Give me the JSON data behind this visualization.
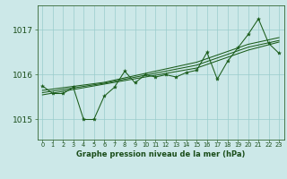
{
  "title": "Graphe pression niveau de la mer (hPa)",
  "background_color": "#cce8e8",
  "grid_color": "#99cccc",
  "line_color": "#1a5c1a",
  "marker_color": "#1a5c1a",
  "xlim": [
    -0.5,
    23.5
  ],
  "ylim": [
    1014.55,
    1017.55
  ],
  "yticks": [
    1015,
    1016,
    1017
  ],
  "xticks": [
    0,
    1,
    2,
    3,
    4,
    5,
    6,
    7,
    8,
    9,
    10,
    11,
    12,
    13,
    14,
    15,
    16,
    17,
    18,
    19,
    20,
    21,
    22,
    23
  ],
  "x": [
    0,
    1,
    2,
    3,
    4,
    5,
    6,
    7,
    8,
    9,
    10,
    11,
    12,
    13,
    14,
    15,
    16,
    17,
    18,
    19,
    20,
    21,
    22,
    23
  ],
  "y_main": [
    1015.75,
    1015.58,
    1015.58,
    1015.72,
    1015.0,
    1015.0,
    1015.52,
    1015.72,
    1016.08,
    1015.82,
    1016.0,
    1015.95,
    1016.0,
    1015.95,
    1016.05,
    1016.1,
    1016.5,
    1015.9,
    1016.3,
    1016.6,
    1016.9,
    1017.25,
    1016.7,
    1016.48
  ],
  "y_trend1": [
    1015.65,
    1015.68,
    1015.71,
    1015.74,
    1015.77,
    1015.8,
    1015.83,
    1015.88,
    1015.93,
    1015.98,
    1016.03,
    1016.08,
    1016.13,
    1016.18,
    1016.23,
    1016.28,
    1016.36,
    1016.44,
    1016.52,
    1016.6,
    1016.68,
    1016.73,
    1016.78,
    1016.83
  ],
  "y_trend2": [
    1015.6,
    1015.635,
    1015.67,
    1015.705,
    1015.74,
    1015.775,
    1015.81,
    1015.855,
    1015.9,
    1015.945,
    1015.99,
    1016.035,
    1016.08,
    1016.125,
    1016.17,
    1016.215,
    1016.295,
    1016.375,
    1016.455,
    1016.535,
    1016.615,
    1016.665,
    1016.715,
    1016.765
  ],
  "y_trend3": [
    1015.55,
    1015.59,
    1015.63,
    1015.67,
    1015.71,
    1015.75,
    1015.79,
    1015.83,
    1015.87,
    1015.91,
    1015.95,
    1015.99,
    1016.03,
    1016.07,
    1016.11,
    1016.15,
    1016.23,
    1016.31,
    1016.39,
    1016.47,
    1016.55,
    1016.61,
    1016.67,
    1016.73
  ]
}
